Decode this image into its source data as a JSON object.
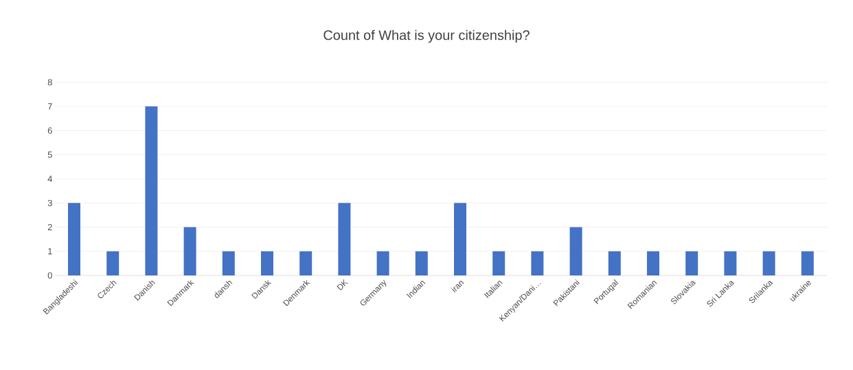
{
  "chart_data": {
    "type": "bar",
    "title": "Count of What is your citizenship?",
    "categories": [
      "Bangladeshi",
      "Czech",
      "Danish",
      "Danmark",
      "dansh",
      "Dansk",
      "Denmark",
      "DK",
      "Germany",
      "Indian",
      "iran",
      "Italian",
      "Kenyan/Dani…",
      "Pakistani",
      "Portugal",
      "Romanian",
      "Slovakia",
      "Sri Lanka",
      "Srilanka",
      "ukraine"
    ],
    "values": [
      3,
      1,
      7,
      2,
      1,
      1,
      1,
      3,
      1,
      1,
      3,
      1,
      1,
      2,
      1,
      1,
      1,
      1,
      1,
      1
    ],
    "color": "#4472c4",
    "ylim": [
      0,
      8
    ],
    "yticks": [
      0,
      1,
      2,
      3,
      4,
      5,
      6,
      7,
      8
    ],
    "grid": "y",
    "legend": false
  }
}
